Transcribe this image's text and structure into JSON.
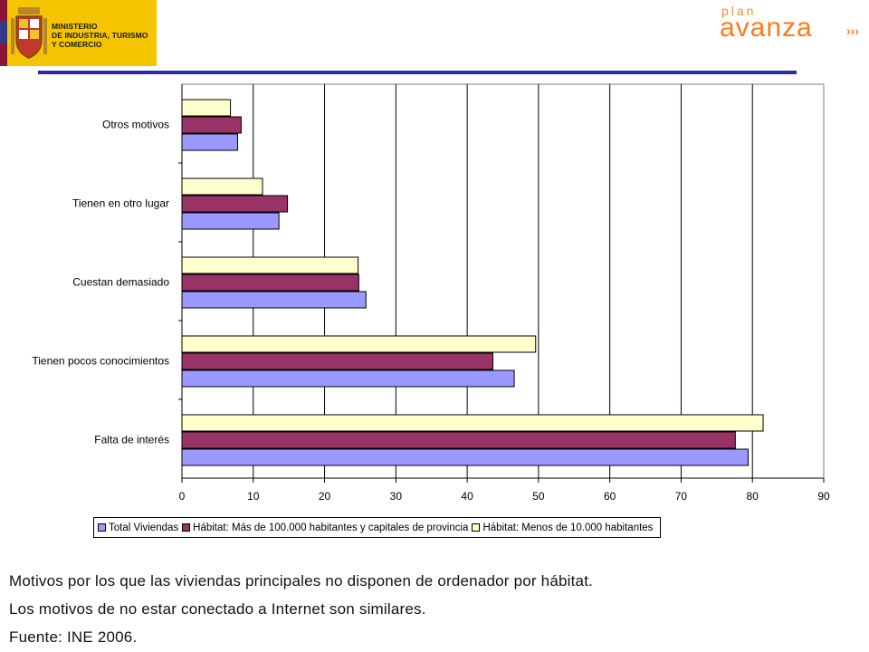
{
  "header": {
    "ministry_lines": [
      "MINISTERIO",
      "DE INDUSTRIA, TURISMO",
      "Y COMERCIO"
    ],
    "brand_small": "plan",
    "brand_big": "avanza",
    "brand_dots": "›››"
  },
  "chart_data": {
    "type": "bar",
    "orientation": "horizontal",
    "categories": [
      "Otros motivos",
      "Tienen en otro lugar",
      "Cuestan demasiado",
      "Tienen pocos conocimientos",
      "Falta de interés"
    ],
    "series": [
      {
        "name": "Total Viviendas",
        "color": "#9999ff",
        "values": [
          7.8,
          13.6,
          25.8,
          46.6,
          79.4
        ]
      },
      {
        "name": "Hábitat: Más de 100.000 habitantes y capitales de provincia",
        "color": "#993366",
        "values": [
          8.3,
          14.8,
          24.8,
          43.6,
          77.6
        ]
      },
      {
        "name": "Hábitat: Menos de 10.000 habitantes",
        "color": "#ffffcc",
        "values": [
          6.8,
          11.3,
          24.7,
          49.6,
          81.5
        ]
      }
    ],
    "xlim": [
      0,
      90
    ],
    "xticks": [
      "0",
      "10",
      "20",
      "30",
      "40",
      "50",
      "60",
      "70",
      "80",
      "90"
    ],
    "grid": true,
    "legend_position": "bottom"
  },
  "captions": [
    "Motivos por los que las viviendas principales no disponen de ordenador por hábitat.",
    "Los motivos de no estar conectado a Internet son similares.",
    "Fuente: INE 2006."
  ]
}
